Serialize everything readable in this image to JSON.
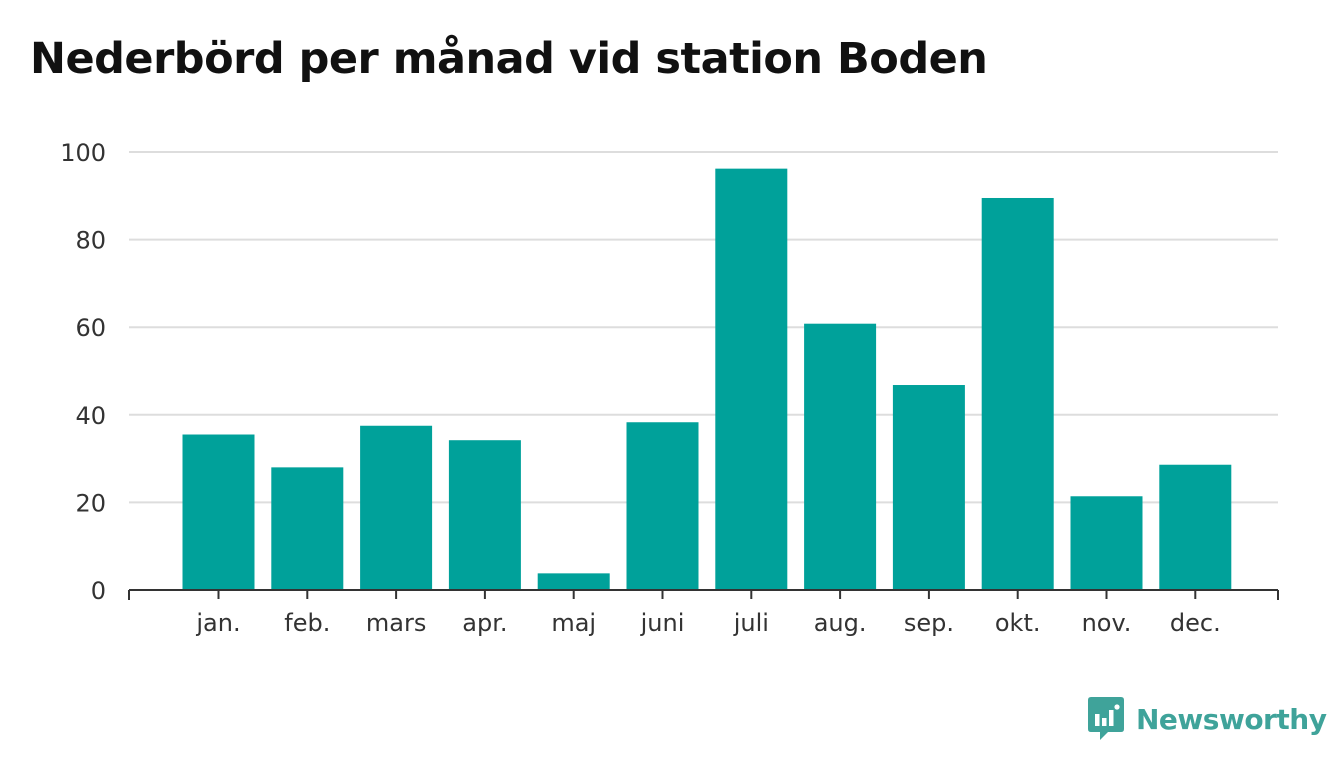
{
  "title": "Nederbörd per månad vid station Boden",
  "brand": "Newsworthy",
  "colors": {
    "bar": "#00a19a",
    "grid": "#dddddd",
    "axis": "#333333",
    "brand": "#3fa39a"
  },
  "chart_data": {
    "type": "bar",
    "title": "Nederbörd per månad vid station Boden",
    "xlabel": "",
    "ylabel": "",
    "categories": [
      "jan.",
      "feb.",
      "mars",
      "apr.",
      "maj",
      "juni",
      "juli",
      "aug.",
      "sep.",
      "okt.",
      "nov.",
      "dec."
    ],
    "values": [
      35.5,
      28,
      37.5,
      34.2,
      3.8,
      38.3,
      96.2,
      60.8,
      46.8,
      89.5,
      21.4,
      28.6
    ],
    "ylim": [
      0,
      100
    ],
    "yticks": [
      0,
      20,
      40,
      60,
      80,
      100
    ],
    "grid": true,
    "legend": "none"
  }
}
